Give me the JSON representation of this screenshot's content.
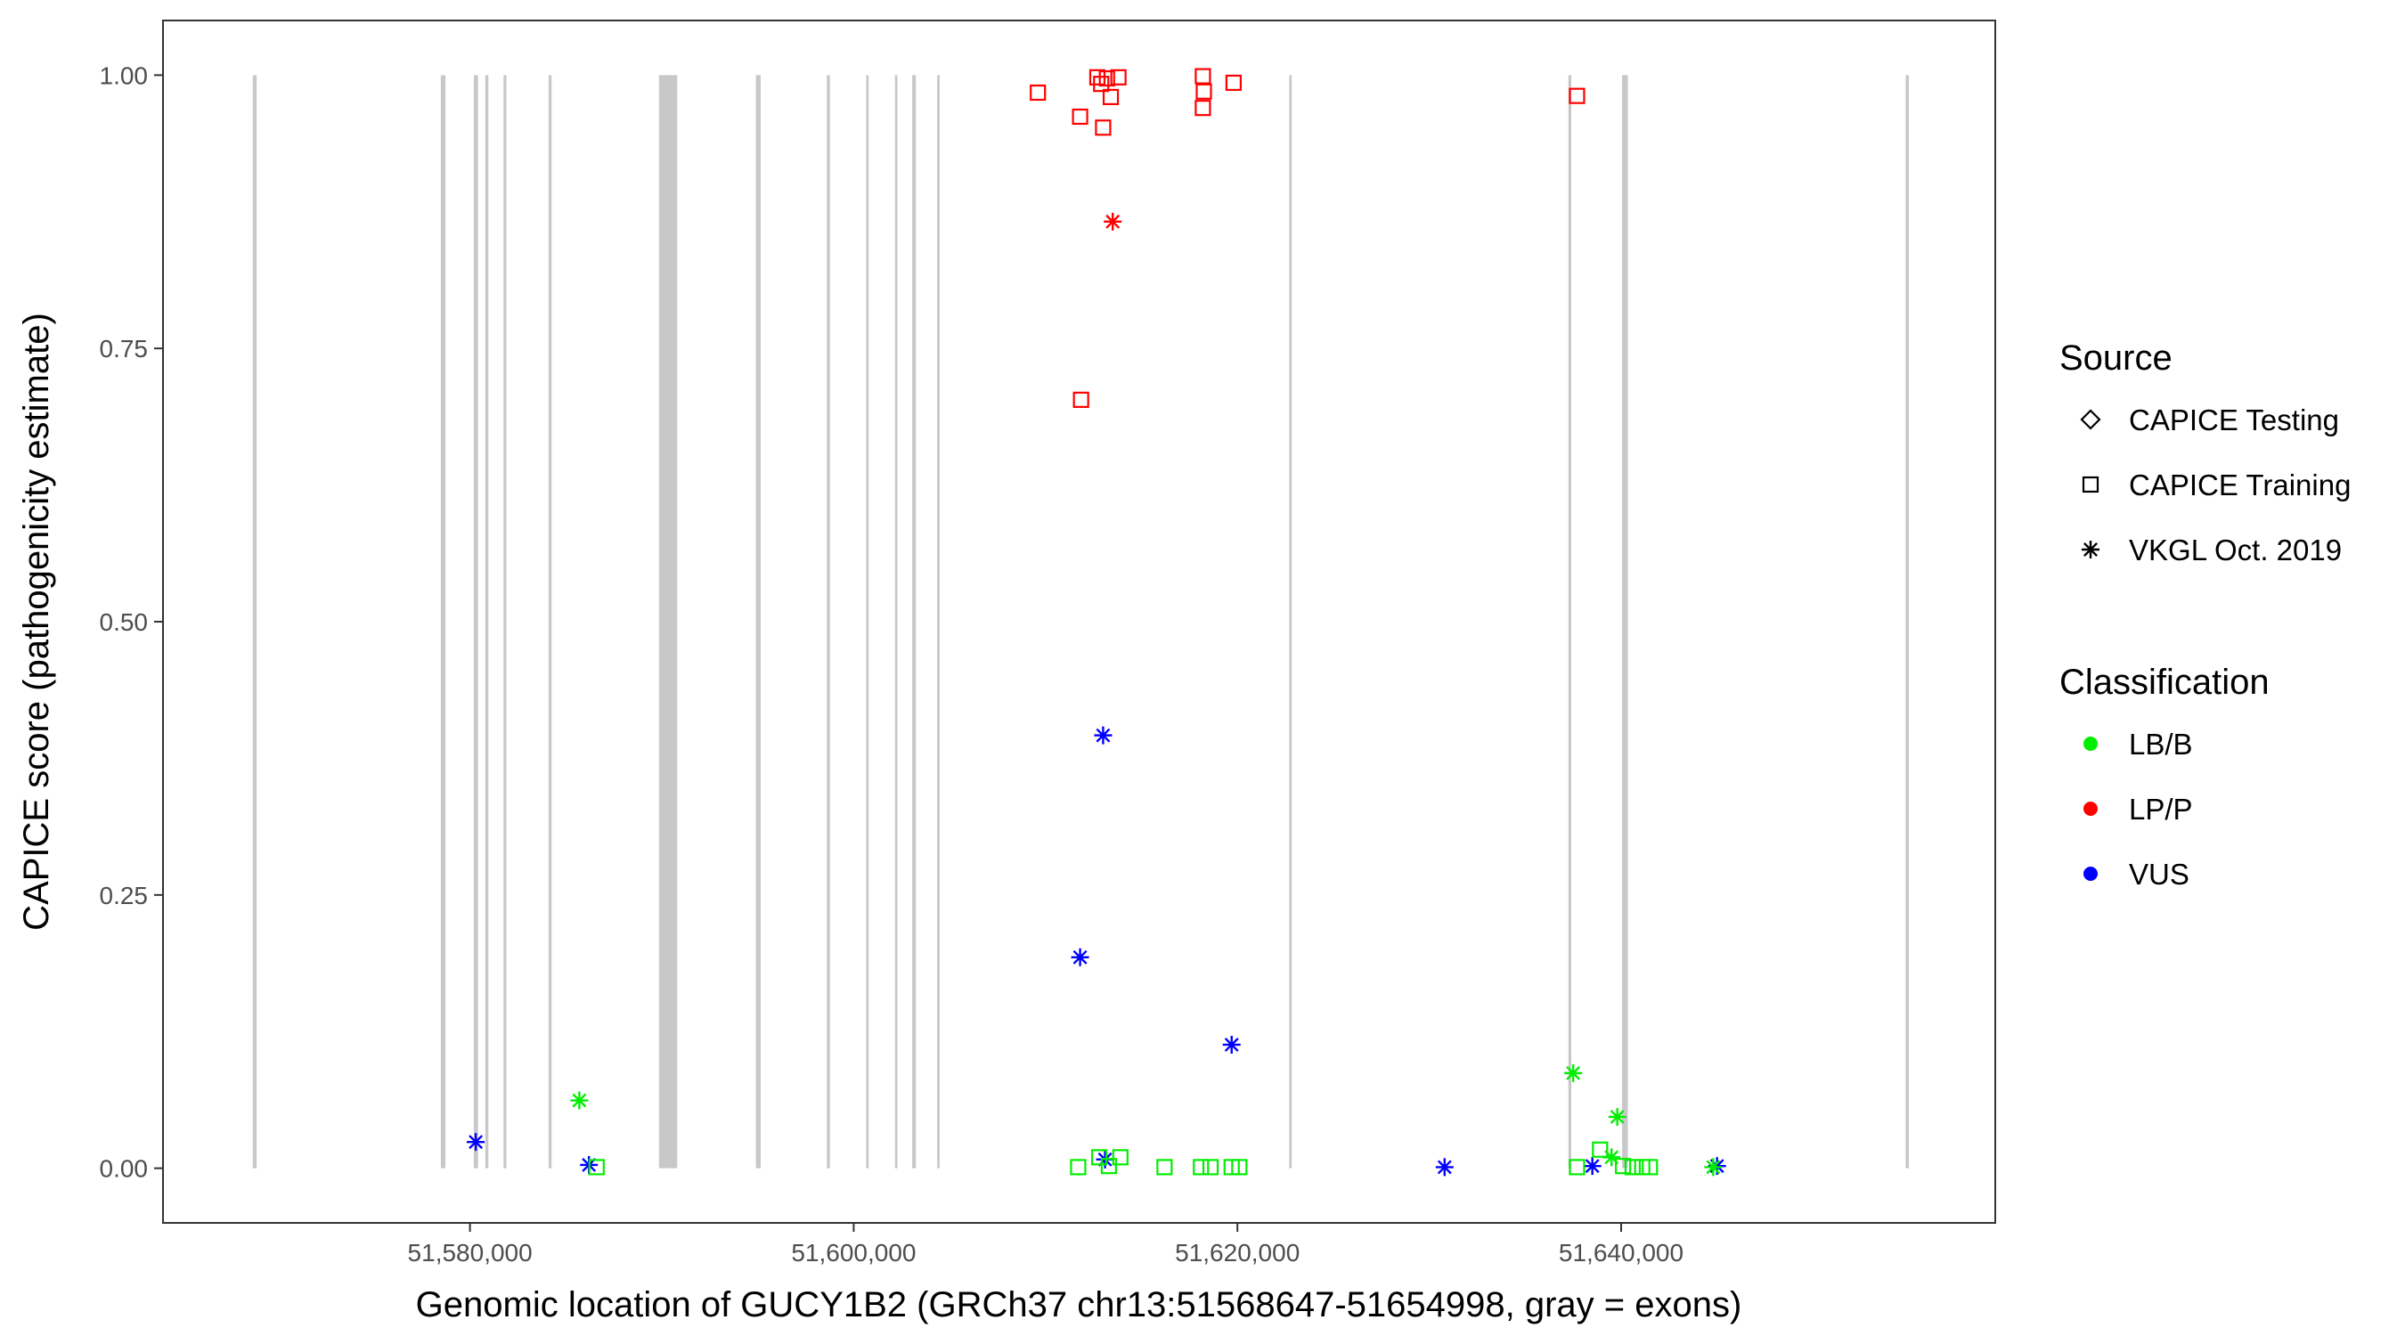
{
  "chart_data": {
    "type": "scatter",
    "xlabel": "Genomic location of GUCY1B2 (GRCh37 chr13:51568647-51654998, gray = exons)",
    "ylabel": "CAPICE score (pathogenicity estimate)",
    "xlim": [
      51564000,
      51659500
    ],
    "ylim": [
      -0.05,
      1.05
    ],
    "x_ticks": [
      51580000,
      51600000,
      51620000,
      51640000
    ],
    "x_tick_labels": [
      "51,580,000",
      "51,600,000",
      "51,620,000",
      "51,640,000"
    ],
    "y_ticks": [
      0,
      0.25,
      0.5,
      0.75,
      1
    ],
    "y_tick_labels": [
      "0.00",
      "0.25",
      "0.50",
      "0.75",
      "1.00"
    ],
    "grid": false,
    "exons": [
      [
        51568680,
        51568880
      ],
      [
        51578480,
        51578720
      ],
      [
        51580200,
        51580420
      ],
      [
        51580800,
        51580960
      ],
      [
        51581750,
        51581900
      ],
      [
        51584100,
        51584250
      ],
      [
        51589850,
        51590800
      ],
      [
        51594900,
        51595150
      ],
      [
        51598600,
        51598760
      ],
      [
        51600650,
        51600780
      ],
      [
        51602150,
        51602280
      ],
      [
        51603050,
        51603240
      ],
      [
        51604350,
        51604480
      ],
      [
        51622700,
        51622830
      ],
      [
        51637250,
        51637400
      ],
      [
        51640050,
        51640350
      ],
      [
        51654830,
        51654998
      ]
    ],
    "legend": {
      "position": "right",
      "source_title": "Source",
      "source_entries": [
        {
          "label": "CAPICE Testing",
          "shape": "diamond"
        },
        {
          "label": "CAPICE Training",
          "shape": "square"
        },
        {
          "label": "VKGL Oct. 2019",
          "shape": "asterisk"
        }
      ],
      "class_title": "Classification",
      "class_entries": [
        {
          "label": "LB/B",
          "color": "#00ee00"
        },
        {
          "label": "LP/P",
          "color": "#ff0000"
        },
        {
          "label": "VUS",
          "color": "#0000ff"
        }
      ]
    },
    "series": [
      {
        "source": "CAPICE Training",
        "classification": "LP/P",
        "shape": "square",
        "color": "#ff0000",
        "points": [
          [
            51609600,
            0.984
          ],
          [
            51611800,
            0.962
          ],
          [
            51612700,
            0.998
          ],
          [
            51612900,
            0.992
          ],
          [
            51613000,
            0.952
          ],
          [
            51613200,
            0.997
          ],
          [
            51613400,
            0.98
          ],
          [
            51613800,
            0.998
          ],
          [
            51618200,
            0.999
          ],
          [
            51618250,
            0.985
          ],
          [
            51618200,
            0.97
          ],
          [
            51619800,
            0.993
          ],
          [
            51637700,
            0.981
          ],
          [
            51611850,
            0.703
          ]
        ]
      },
      {
        "source": "VKGL Oct. 2019",
        "classification": "LP/P",
        "shape": "asterisk",
        "color": "#ff0000",
        "points": [
          [
            51613500,
            0.866
          ]
        ]
      },
      {
        "source": "VKGL Oct. 2019",
        "classification": "VUS",
        "shape": "asterisk",
        "color": "#0000ff",
        "points": [
          [
            51613000,
            0.396
          ],
          [
            51611800,
            0.193
          ],
          [
            51619700,
            0.113
          ],
          [
            51580300,
            0.024
          ],
          [
            51586200,
            0.003
          ],
          [
            51613100,
            0.008
          ],
          [
            51630800,
            0.001
          ],
          [
            51638500,
            0.002
          ],
          [
            51645000,
            0.002
          ]
        ]
      },
      {
        "source": "VKGL Oct. 2019",
        "classification": "LB/B",
        "shape": "asterisk",
        "color": "#00ee00",
        "points": [
          [
            51585700,
            0.062
          ],
          [
            51637500,
            0.087
          ],
          [
            51639800,
            0.047
          ],
          [
            51639500,
            0.01
          ],
          [
            51644800,
            0.001
          ]
        ]
      },
      {
        "source": "CAPICE Training",
        "classification": "LB/B",
        "shape": "square",
        "color": "#00ee00",
        "points": [
          [
            51586600,
            0.001
          ],
          [
            51611700,
            0.001
          ],
          [
            51612800,
            0.01
          ],
          [
            51613300,
            0.002
          ],
          [
            51613900,
            0.01
          ],
          [
            51616200,
            0.001
          ],
          [
            51618100,
            0.001
          ],
          [
            51618600,
            0.001
          ],
          [
            51619700,
            0.001
          ],
          [
            51620100,
            0.001
          ],
          [
            51637700,
            0.001
          ],
          [
            51638900,
            0.017
          ],
          [
            51640100,
            0.002
          ],
          [
            51640600,
            0.001
          ],
          [
            51641100,
            0.001
          ],
          [
            51641500,
            0.001
          ]
        ]
      }
    ]
  }
}
